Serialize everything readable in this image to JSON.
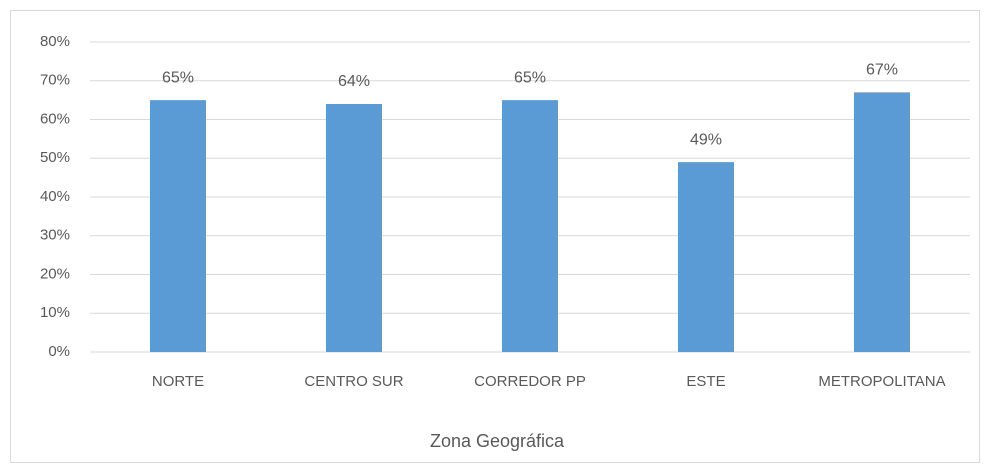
{
  "chart_data": {
    "type": "bar",
    "x_label": "Zona Geográfica",
    "categories": [
      "NORTE",
      "CENTRO SUR",
      "CORREDOR PP",
      "ESTE",
      "METROPOLITANA"
    ],
    "values": [
      65,
      64,
      65,
      49,
      67
    ],
    "value_labels": [
      "65%",
      "64%",
      "65%",
      "49%",
      "67%"
    ],
    "color": "#5b9bd5",
    "ylim": [
      0,
      80
    ],
    "yticks": [
      {
        "value": 0,
        "label": "0%"
      },
      {
        "value": 10,
        "label": "10%"
      },
      {
        "value": 20,
        "label": "20%"
      },
      {
        "value": 30,
        "label": "30%"
      },
      {
        "value": 40,
        "label": "40%"
      },
      {
        "value": 50,
        "label": "50%"
      },
      {
        "value": 60,
        "label": "60%"
      },
      {
        "value": 70,
        "label": "70%"
      },
      {
        "value": 80,
        "label": "80%"
      }
    ],
    "grid": true
  }
}
